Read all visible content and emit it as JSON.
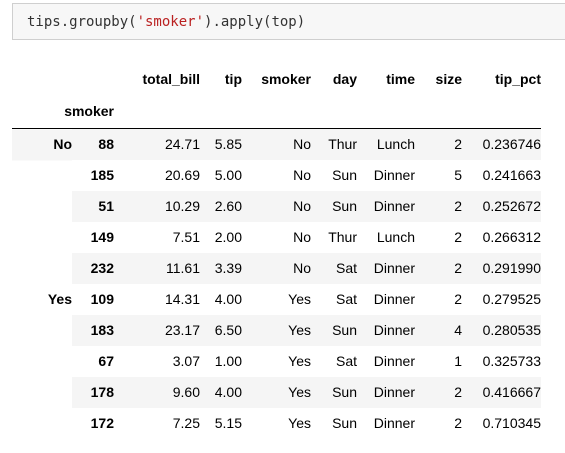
{
  "notebook": {
    "code": {
      "prefix": "tips.groupby(",
      "string": "'smoker'",
      "suffix": ").apply(top)"
    }
  },
  "dataframe": {
    "columns": [
      "total_bill",
      "tip",
      "smoker",
      "day",
      "time",
      "size",
      "tip_pct"
    ],
    "index_name": "smoker",
    "groups": [
      {
        "label": "No",
        "rows": [
          {
            "index": "88",
            "values": [
              "24.71",
              "5.85",
              "No",
              "Thur",
              "Lunch",
              "2",
              "0.236746"
            ]
          },
          {
            "index": "185",
            "values": [
              "20.69",
              "5.00",
              "No",
              "Sun",
              "Dinner",
              "5",
              "0.241663"
            ]
          },
          {
            "index": "51",
            "values": [
              "10.29",
              "2.60",
              "No",
              "Sun",
              "Dinner",
              "2",
              "0.252672"
            ]
          },
          {
            "index": "149",
            "values": [
              "7.51",
              "2.00",
              "No",
              "Thur",
              "Lunch",
              "2",
              "0.266312"
            ]
          },
          {
            "index": "232",
            "values": [
              "11.61",
              "3.39",
              "No",
              "Sat",
              "Dinner",
              "2",
              "0.291990"
            ]
          }
        ]
      },
      {
        "label": "Yes",
        "rows": [
          {
            "index": "109",
            "values": [
              "14.31",
              "4.00",
              "Yes",
              "Sat",
              "Dinner",
              "2",
              "0.279525"
            ]
          },
          {
            "index": "183",
            "values": [
              "23.17",
              "6.50",
              "Yes",
              "Sun",
              "Dinner",
              "4",
              "0.280535"
            ]
          },
          {
            "index": "67",
            "values": [
              "3.07",
              "1.00",
              "Yes",
              "Sat",
              "Dinner",
              "1",
              "0.325733"
            ]
          },
          {
            "index": "178",
            "values": [
              "9.60",
              "4.00",
              "Yes",
              "Sun",
              "Dinner",
              "2",
              "0.416667"
            ]
          },
          {
            "index": "172",
            "values": [
              "7.25",
              "5.15",
              "Yes",
              "Sun",
              "Dinner",
              "2",
              "0.710345"
            ]
          }
        ]
      }
    ]
  }
}
